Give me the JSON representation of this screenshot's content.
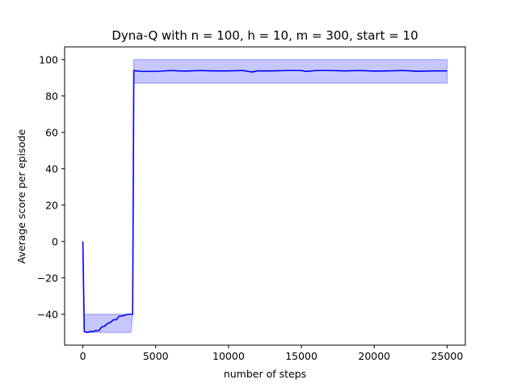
{
  "chart_data": {
    "type": "line",
    "title": "Dyna-Q with n = 100, h = 10, m = 300, start = 10",
    "xlabel": "number of steps",
    "ylabel": "Average score per episode",
    "xlim": [
      -1250,
      26250
    ],
    "ylim": [
      -57,
      107
    ],
    "grid": false,
    "legend": "none",
    "x_ticks": [
      0,
      5000,
      10000,
      15000,
      20000,
      25000
    ],
    "x_tick_labels": [
      "0",
      "5000",
      "10000",
      "15000",
      "20000",
      "25000"
    ],
    "y_ticks": [
      -40,
      -20,
      0,
      20,
      40,
      60,
      80,
      100
    ],
    "y_tick_labels": [
      "−40",
      "−20",
      "0",
      "20",
      "40",
      "60",
      "80",
      "100"
    ],
    "colors": {
      "line": "#0000ff",
      "band_fill": "#0000ff",
      "band_opacity": 0.22
    },
    "series": [
      {
        "x": [
          0,
          100,
          300,
          500,
          700,
          900,
          1100,
          1300,
          1500,
          1700,
          1900,
          2100,
          2300,
          2500,
          2700,
          2900,
          3100,
          3300,
          3420,
          3500,
          4000,
          5000,
          6000,
          7000,
          8000,
          9000,
          10000,
          11000,
          11600,
          12000,
          13000,
          14000,
          15000,
          15300,
          16000,
          17000,
          18000,
          19000,
          20000,
          21000,
          22000,
          23000,
          24000,
          25000
        ],
        "y": [
          0,
          -49.5,
          -50,
          -49.5,
          -49.5,
          -49,
          -49,
          -47,
          -46.5,
          -45,
          -44.5,
          -43,
          -43,
          -41,
          -41,
          -40.5,
          -40,
          -40,
          -40,
          94,
          93.5,
          93.5,
          94,
          93.7,
          94,
          93.8,
          93.8,
          94,
          93.2,
          93.8,
          93.8,
          94,
          94,
          93.5,
          94,
          94,
          93.8,
          94,
          93.7,
          93.8,
          94,
          93.6,
          93.8,
          93.8
        ],
        "upper": [
          0,
          -40,
          -40,
          -40,
          -40,
          -40,
          -40,
          -40,
          -40,
          -40,
          -40,
          -40,
          -40,
          -40,
          -40,
          -40,
          -40,
          -40,
          -40,
          100,
          100,
          100,
          100,
          100,
          100,
          100,
          100,
          100,
          100,
          100,
          100,
          100,
          100,
          100,
          100,
          100,
          100,
          100,
          100,
          100,
          100,
          100,
          100,
          100
        ],
        "lower": [
          0,
          -50,
          -50,
          -50,
          -50,
          -50,
          -50,
          -50,
          -50,
          -50,
          -50,
          -50,
          -50,
          -50,
          -50,
          -50,
          -50,
          -50,
          -40,
          87,
          87,
          87,
          87,
          87,
          87,
          87,
          87,
          87,
          87,
          87,
          87,
          87,
          87,
          87,
          87,
          87,
          87,
          87,
          87,
          87,
          87,
          87,
          87,
          87
        ]
      }
    ]
  }
}
